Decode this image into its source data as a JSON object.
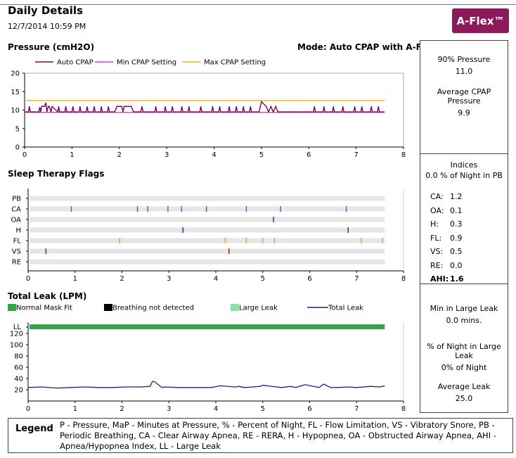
{
  "header": {
    "title": "Daily Details",
    "datetime": "12/7/2014 10:59 PM",
    "badge": "A-Flex™",
    "badge_color": "#8c1a5a"
  },
  "pressure_panel": {
    "p90_label": "90% Pressure",
    "p90_value": "11.0",
    "avg_label": "Average CPAP Pressure",
    "avg_value": "9.9"
  },
  "indices_panel": {
    "title": "Indices",
    "pb_line": "0.0 % of Night in PB",
    "rows": [
      {
        "label": "CA:",
        "value": "1.2"
      },
      {
        "label": "OA:",
        "value": "0.1"
      },
      {
        "label": "H:",
        "value": "0.3"
      },
      {
        "label": "FL:",
        "value": "0.9"
      },
      {
        "label": "VS:",
        "value": "0.5"
      },
      {
        "label": "RE:",
        "value": "0.0"
      }
    ],
    "ahi_label": "AHI:",
    "ahi_value": "1.6"
  },
  "leak_panel": {
    "min_label": "Min in Large Leak",
    "min_value": "0.0  mins.",
    "pct_label": "% of Night in Large Leak",
    "pct_value": "0% of Night",
    "avg_label": "Average Leak",
    "avg_value": "25.0"
  },
  "legend": {
    "heading": "Legend",
    "text": "P - Pressure, MaP - Minutes at Pressure, % - Percent of Night, FL - Flow Limitation, VS - Vibratory Snore, PB - Periodic Breathing, CA - Clear Airway Apnea, RE - RERA, H - Hypopnea, OA - Obstructed Airway Apnea, AHI - Apnea/Hypopnea Index, LL - Large Leak"
  },
  "chart_data": [
    {
      "type": "line",
      "title": "Pressure (cmH2O)",
      "mode_label": "Mode: Auto CPAP with A-Flex",
      "xlim": [
        0,
        8
      ],
      "ylim": [
        0,
        20
      ],
      "xticks": [
        "0",
        "1",
        "2",
        "3",
        "4",
        "5",
        "6",
        "7",
        "8"
      ],
      "yticks": [
        "0",
        "5",
        "10",
        "15",
        "20"
      ],
      "legend": [
        "Auto CPAP",
        "Min CPAP Setting",
        "Max CPAP Setting"
      ],
      "series": [
        {
          "name": "Auto CPAP",
          "color": "#800060",
          "x": [
            0.0,
            0.08,
            0.1,
            0.12,
            0.3,
            0.32,
            0.34,
            0.36,
            0.42,
            0.45,
            0.47,
            0.5,
            0.52,
            0.56,
            0.58,
            0.7,
            0.72,
            0.74,
            0.85,
            0.87,
            0.89,
            1.0,
            1.02,
            1.04,
            1.15,
            1.17,
            1.19,
            1.3,
            1.32,
            1.34,
            1.45,
            1.47,
            1.49,
            1.6,
            1.62,
            1.64,
            1.75,
            1.77,
            1.79,
            1.9,
            1.95,
            2.05,
            2.08,
            2.1,
            2.25,
            2.3,
            2.45,
            2.48,
            2.5,
            2.75,
            2.77,
            2.79,
            2.95,
            2.97,
            2.99,
            3.1,
            3.12,
            3.14,
            3.3,
            3.32,
            3.34,
            3.45,
            3.47,
            3.49,
            3.7,
            3.72,
            3.74,
            3.95,
            3.97,
            3.99,
            4.1,
            4.12,
            4.14,
            4.3,
            4.32,
            4.34,
            4.45,
            4.47,
            4.49,
            4.6,
            4.62,
            4.64,
            4.75,
            4.77,
            4.79,
            4.95,
            5.0,
            5.1,
            5.15,
            5.2,
            5.25,
            5.3,
            5.35,
            5.4,
            6.1,
            6.12,
            6.14,
            6.3,
            6.32,
            6.34,
            6.5,
            6.52,
            6.54,
            6.7,
            6.72,
            6.74,
            6.95,
            6.97,
            6.99,
            7.1,
            7.12,
            7.14,
            7.3,
            7.32,
            7.34,
            7.45,
            7.47,
            7.49,
            7.6
          ],
          "y": [
            9.5,
            9.5,
            11,
            9.5,
            9.5,
            10.8,
            9.5,
            11,
            11,
            12,
            9.5,
            11,
            11,
            9.5,
            11,
            9.5,
            11,
            9.5,
            9.5,
            11,
            9.5,
            9.5,
            11,
            9.5,
            9.5,
            11,
            9.5,
            9.5,
            11,
            9.5,
            9.5,
            11,
            9.5,
            9.5,
            11,
            9.5,
            9.5,
            11,
            9.5,
            9.5,
            11,
            11,
            9.5,
            11,
            11,
            9.5,
            9.5,
            11,
            9.5,
            9.5,
            11,
            9.5,
            9.5,
            11,
            9.5,
            9.5,
            11,
            9.5,
            9.5,
            11,
            9.5,
            9.5,
            11,
            9.5,
            9.5,
            11,
            9.5,
            9.5,
            11,
            9.5,
            9.5,
            11,
            9.5,
            9.5,
            11,
            9.5,
            9.5,
            11,
            9.5,
            9.5,
            11,
            9.5,
            9.5,
            11,
            9.5,
            9.5,
            12.3,
            11,
            9.5,
            11,
            9.5,
            11,
            9.5,
            9.5,
            9.5,
            11,
            9.5,
            9.5,
            11,
            9.5,
            9.5,
            11,
            9.5,
            9.5,
            11,
            9.5,
            9.5,
            11,
            9.5,
            9.5,
            11,
            9.5,
            9.5,
            11,
            9.5,
            9.5,
            11,
            9.5,
            9.5
          ]
        },
        {
          "name": "Min CPAP Setting",
          "color": "#d040d0",
          "x": [
            0,
            7.6
          ],
          "y": [
            9.4,
            9.4
          ]
        },
        {
          "name": "Max CPAP Setting",
          "color": "#f0b030",
          "x": [
            0,
            7.6
          ],
          "y": [
            12.6,
            12.6
          ]
        }
      ]
    },
    {
      "type": "scatter",
      "title": "Sleep Therapy Flags",
      "xlim": [
        0,
        8
      ],
      "xticks": [
        "0",
        "1",
        "2",
        "3",
        "4",
        "5",
        "6",
        "7",
        "8"
      ],
      "categories": [
        "PB",
        "CA",
        "OA",
        "H",
        "FL",
        "VS",
        "RE"
      ],
      "events": [
        {
          "flag": "CA",
          "color": "#a040c0",
          "x": [
            0.92,
            2.33,
            2.55,
            2.98,
            3.27,
            3.8,
            4.65,
            5.38,
            6.78
          ]
        },
        {
          "flag": "OA",
          "color": "#1f3fa0",
          "x": [
            5.23
          ]
        },
        {
          "flag": "H",
          "color": "#1f3fa0",
          "x": [
            3.3,
            6.82
          ]
        },
        {
          "flag": "FL",
          "color": "#f0a040",
          "x": [
            1.95,
            4.2,
            4.65,
            5.0,
            5.25,
            7.1,
            7.55
          ]
        },
        {
          "flag": "VS",
          "color": "#a02020",
          "x": [
            0.38,
            4.28
          ]
        }
      ]
    },
    {
      "type": "line",
      "title": "Total Leak (LPM)",
      "xlim": [
        0,
        8
      ],
      "ylim": [
        0,
        140
      ],
      "xticks": [
        "0",
        "1",
        "2",
        "3",
        "4",
        "5",
        "6",
        "7",
        "8"
      ],
      "yticks": [
        "20",
        "40",
        "60",
        "80",
        "100",
        "120"
      ],
      "top_band_label": "LL",
      "legend": [
        {
          "name": "Normal Mask Fit",
          "color": "#2ca846"
        },
        {
          "name": "Breathing not detected",
          "color": "#000000"
        },
        {
          "name": "Large Leak",
          "color": "#90e0a0"
        },
        {
          "name": "Total Leak",
          "color": "#1a237e"
        }
      ],
      "series": [
        {
          "name": "Total Leak",
          "color": "#1a237e",
          "x": [
            0.0,
            0.3,
            0.6,
            0.9,
            1.2,
            1.5,
            1.8,
            2.1,
            2.4,
            2.6,
            2.65,
            2.7,
            2.85,
            2.9,
            3.2,
            3.5,
            3.9,
            4.1,
            4.4,
            4.5,
            4.6,
            4.8,
            4.95,
            5.0,
            5.4,
            5.6,
            5.7,
            5.9,
            6.2,
            6.3,
            6.45,
            6.6,
            6.8,
            7.0,
            7.3,
            7.5,
            7.6
          ],
          "y": [
            24,
            25,
            23,
            24,
            25,
            24,
            24,
            25,
            25,
            26,
            35,
            34,
            24,
            25,
            24,
            24,
            24,
            27,
            25,
            26,
            24,
            25,
            26,
            28,
            24,
            26,
            24,
            29,
            24,
            30,
            24,
            24,
            25,
            24,
            26,
            25,
            27
          ]
        }
      ]
    }
  ]
}
